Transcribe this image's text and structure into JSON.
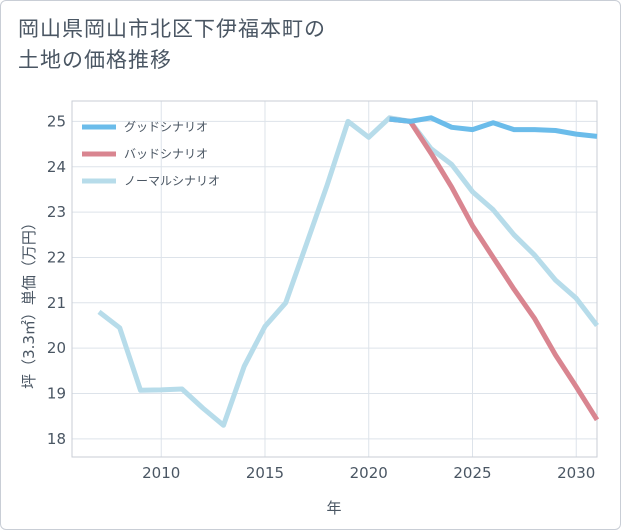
{
  "title_lines": [
    "岡山県岡山市北区下伊福本町の",
    "土地の価格推移"
  ],
  "colors": {
    "good": "#6bbcea",
    "bad": "#d98590",
    "normal": "#b7dcea",
    "grid": "#dde3ea",
    "text": "#4a5663"
  },
  "chart_data": {
    "type": "line",
    "title": "岡山県岡山市北区下伊福本町の土地の価格推移",
    "xlabel": "年",
    "ylabel": "坪（3.3㎡）単価（万円）",
    "xlim": [
      2005.7,
      2031
    ],
    "ylim": [
      17.6,
      25.45
    ],
    "xticks": [
      2010,
      2015,
      2020,
      2025,
      2030
    ],
    "yticks": [
      18,
      19,
      20,
      21,
      22,
      23,
      24,
      25
    ],
    "legend_position": "top-left",
    "series": [
      {
        "name": "グッドシナリオ",
        "key": "good",
        "x": [
          2021,
          2022,
          2023,
          2024,
          2025,
          2026,
          2027,
          2028,
          2029,
          2030,
          2031
        ],
        "y": [
          25.05,
          25.0,
          25.08,
          24.87,
          24.82,
          24.97,
          24.82,
          24.82,
          24.8,
          24.72,
          24.67
        ]
      },
      {
        "name": "バッドシナリオ",
        "key": "bad",
        "x": [
          2021,
          2022,
          2023,
          2024,
          2025,
          2026,
          2027,
          2028,
          2029,
          2030,
          2031
        ],
        "y": [
          25.05,
          25.0,
          24.3,
          23.55,
          22.7,
          22.0,
          21.3,
          20.65,
          19.85,
          19.15,
          18.42
        ]
      },
      {
        "name": "ノーマルシナリオ",
        "key": "normal",
        "x": [
          2007,
          2008,
          2009,
          2010,
          2011,
          2012,
          2013,
          2014,
          2015,
          2016,
          2017,
          2018,
          2019,
          2020,
          2021,
          2022,
          2023,
          2024,
          2025,
          2026,
          2027,
          2028,
          2029,
          2030,
          2031
        ],
        "y": [
          20.8,
          20.45,
          19.07,
          19.08,
          19.1,
          18.68,
          18.3,
          19.6,
          20.48,
          21.0,
          22.3,
          23.6,
          25.0,
          24.65,
          25.08,
          25.0,
          24.4,
          24.05,
          23.45,
          23.05,
          22.5,
          22.05,
          21.5,
          21.1,
          20.5
        ]
      }
    ]
  }
}
